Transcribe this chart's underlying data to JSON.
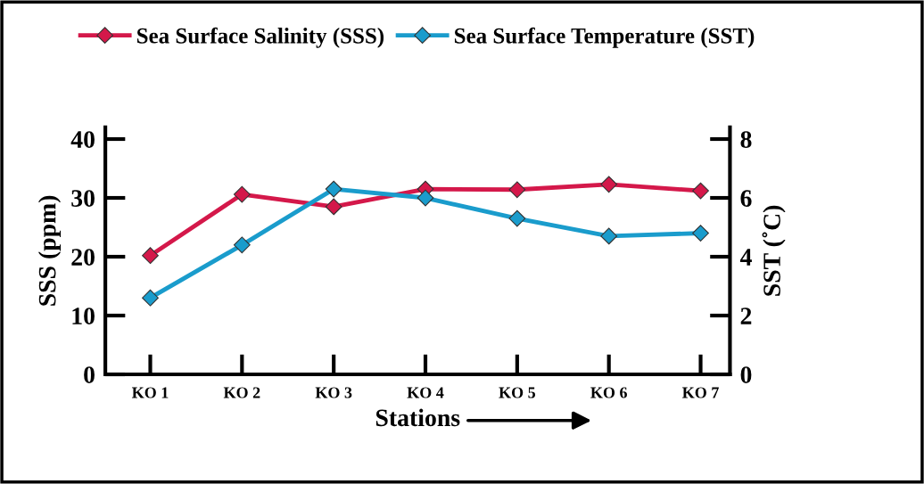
{
  "chart_data": {
    "type": "line",
    "xlabel": "Stations",
    "ylabel": "SSS (ppm)",
    "y2label": "SST (˚C)",
    "categories": [
      "KO 1",
      "KO 2",
      "KO 3",
      "KO 4",
      "KO 5",
      "KO 6",
      "KO 7"
    ],
    "series": [
      {
        "name": "Sea Surface Salinity (SSS)",
        "color": "#d4184a",
        "values": [
          20.2,
          30.6,
          28.5,
          31.5,
          31.4,
          32.3,
          31.2
        ]
      },
      {
        "name": "Sea Surface Temperature (SST)",
        "color": "#1a9ccc",
        "axis": "y2",
        "values": [
          2.6,
          4.4,
          6.3,
          6.0,
          5.3,
          4.7,
          4.8
        ]
      }
    ],
    "ylim": [
      0,
      42
    ],
    "yticks": [
      0,
      10,
      20,
      30,
      40
    ],
    "y2lim": [
      0,
      8.4
    ],
    "y2ticks": [
      0,
      2,
      4,
      6,
      8
    ],
    "marker": "diamond",
    "line_style": "solid",
    "legend": "top",
    "grid": false
  }
}
